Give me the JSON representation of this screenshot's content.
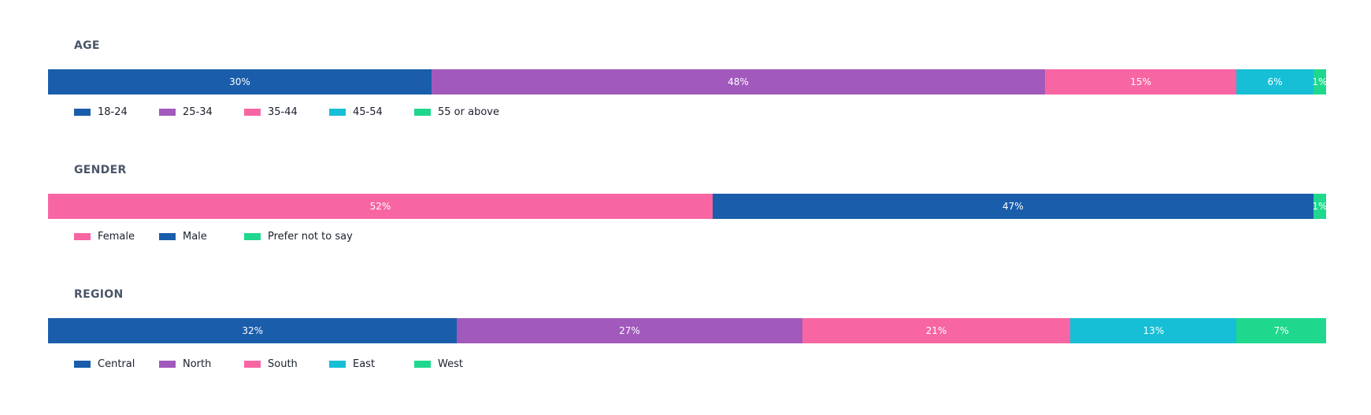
{
  "chart_data": [
    {
      "type": "bar",
      "title": "AGE",
      "categories": [
        "18-24",
        "25-34",
        "35-44",
        "45-54",
        "55 or above"
      ],
      "values": [
        30,
        48,
        15,
        6,
        1
      ],
      "labels": [
        "30%",
        "48%",
        "15%",
        "6%",
        "1%"
      ],
      "colors": [
        "#1a5dab",
        "#a259bc",
        "#f766a2",
        "#17bfd6",
        "#1fd88e"
      ],
      "xlim": [
        0,
        100
      ]
    },
    {
      "type": "bar",
      "title": "GENDER",
      "categories": [
        "Female",
        "Male",
        "Prefer not to say"
      ],
      "values": [
        52,
        47,
        1
      ],
      "labels": [
        "52%",
        "47%",
        "1%"
      ],
      "colors": [
        "#f766a2",
        "#1a5dab",
        "#1fd88e"
      ],
      "xlim": [
        0,
        100
      ]
    },
    {
      "type": "bar",
      "title": "REGION",
      "categories": [
        "Central",
        "North",
        "South",
        "East",
        "West"
      ],
      "values": [
        32,
        27,
        21,
        13,
        7
      ],
      "labels": [
        "32%",
        "27%",
        "21%",
        "13%",
        "7%"
      ],
      "colors": [
        "#1a5dab",
        "#a259bc",
        "#f766a2",
        "#17bfd6",
        "#1fd88e"
      ],
      "xlim": [
        0,
        100
      ]
    }
  ]
}
